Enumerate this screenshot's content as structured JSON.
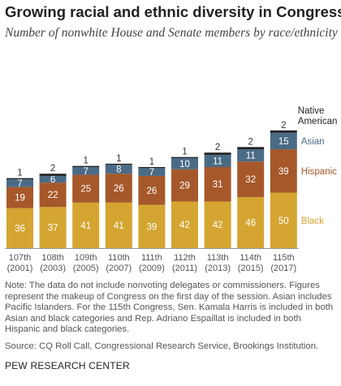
{
  "title": "Growing racial and ethnic diversity in Congress",
  "subtitle": "Number of nonwhite House and Senate members by race/ethnicity",
  "note": "Note: The data do not include nonvoting delegates or commissioners. Figures represent the makeup of Congress on the first day of the session. Asian includes Pacific Islanders. For the 115th Congress, Sen. Kamala Harris is included in both Asian and black categories and Rep. Adriano Espaillat is included in both Hispanic and black categories.",
  "source": "Source: CQ Roll Call, Congressional Research Service, Brookings Institution.",
  "footer": "PEW RESEARCH CENTER",
  "colors": {
    "black": "#d4a531",
    "hispanic": "#a6582a",
    "asian": "#4a6b86",
    "native_american": "#222222"
  },
  "chart_data": {
    "type": "bar",
    "stacked": true,
    "categories": [
      [
        "107th",
        "(2001)"
      ],
      [
        "108th",
        "(2003)"
      ],
      [
        "109th",
        "(2005)"
      ],
      [
        "110th",
        "(2007)"
      ],
      [
        "111th",
        "(2009)"
      ],
      [
        "112th",
        "(2011)"
      ],
      [
        "113th",
        "(2013)"
      ],
      [
        "114th",
        "(2015)"
      ],
      [
        "115th",
        "(2017)"
      ]
    ],
    "series": [
      {
        "name": "Black",
        "color": "#d4a531",
        "label_color": "#d4a531",
        "values": [
          36,
          37,
          41,
          41,
          39,
          42,
          42,
          46,
          50
        ]
      },
      {
        "name": "Hispanic",
        "color": "#a6582a",
        "label_color": "#a6582a",
        "values": [
          19,
          22,
          25,
          26,
          26,
          29,
          31,
          32,
          39
        ]
      },
      {
        "name": "Asian",
        "color": "#4a6b86",
        "label_color": "#4a6b86",
        "values": [
          7,
          6,
          7,
          8,
          7,
          10,
          11,
          11,
          15
        ]
      },
      {
        "name": "Native American",
        "color": "#222222",
        "label_color": "#222222",
        "label_lines": [
          "Native",
          "American"
        ],
        "values": [
          1,
          2,
          1,
          1,
          1,
          1,
          2,
          2,
          2
        ]
      }
    ],
    "legend": "inline-right"
  }
}
